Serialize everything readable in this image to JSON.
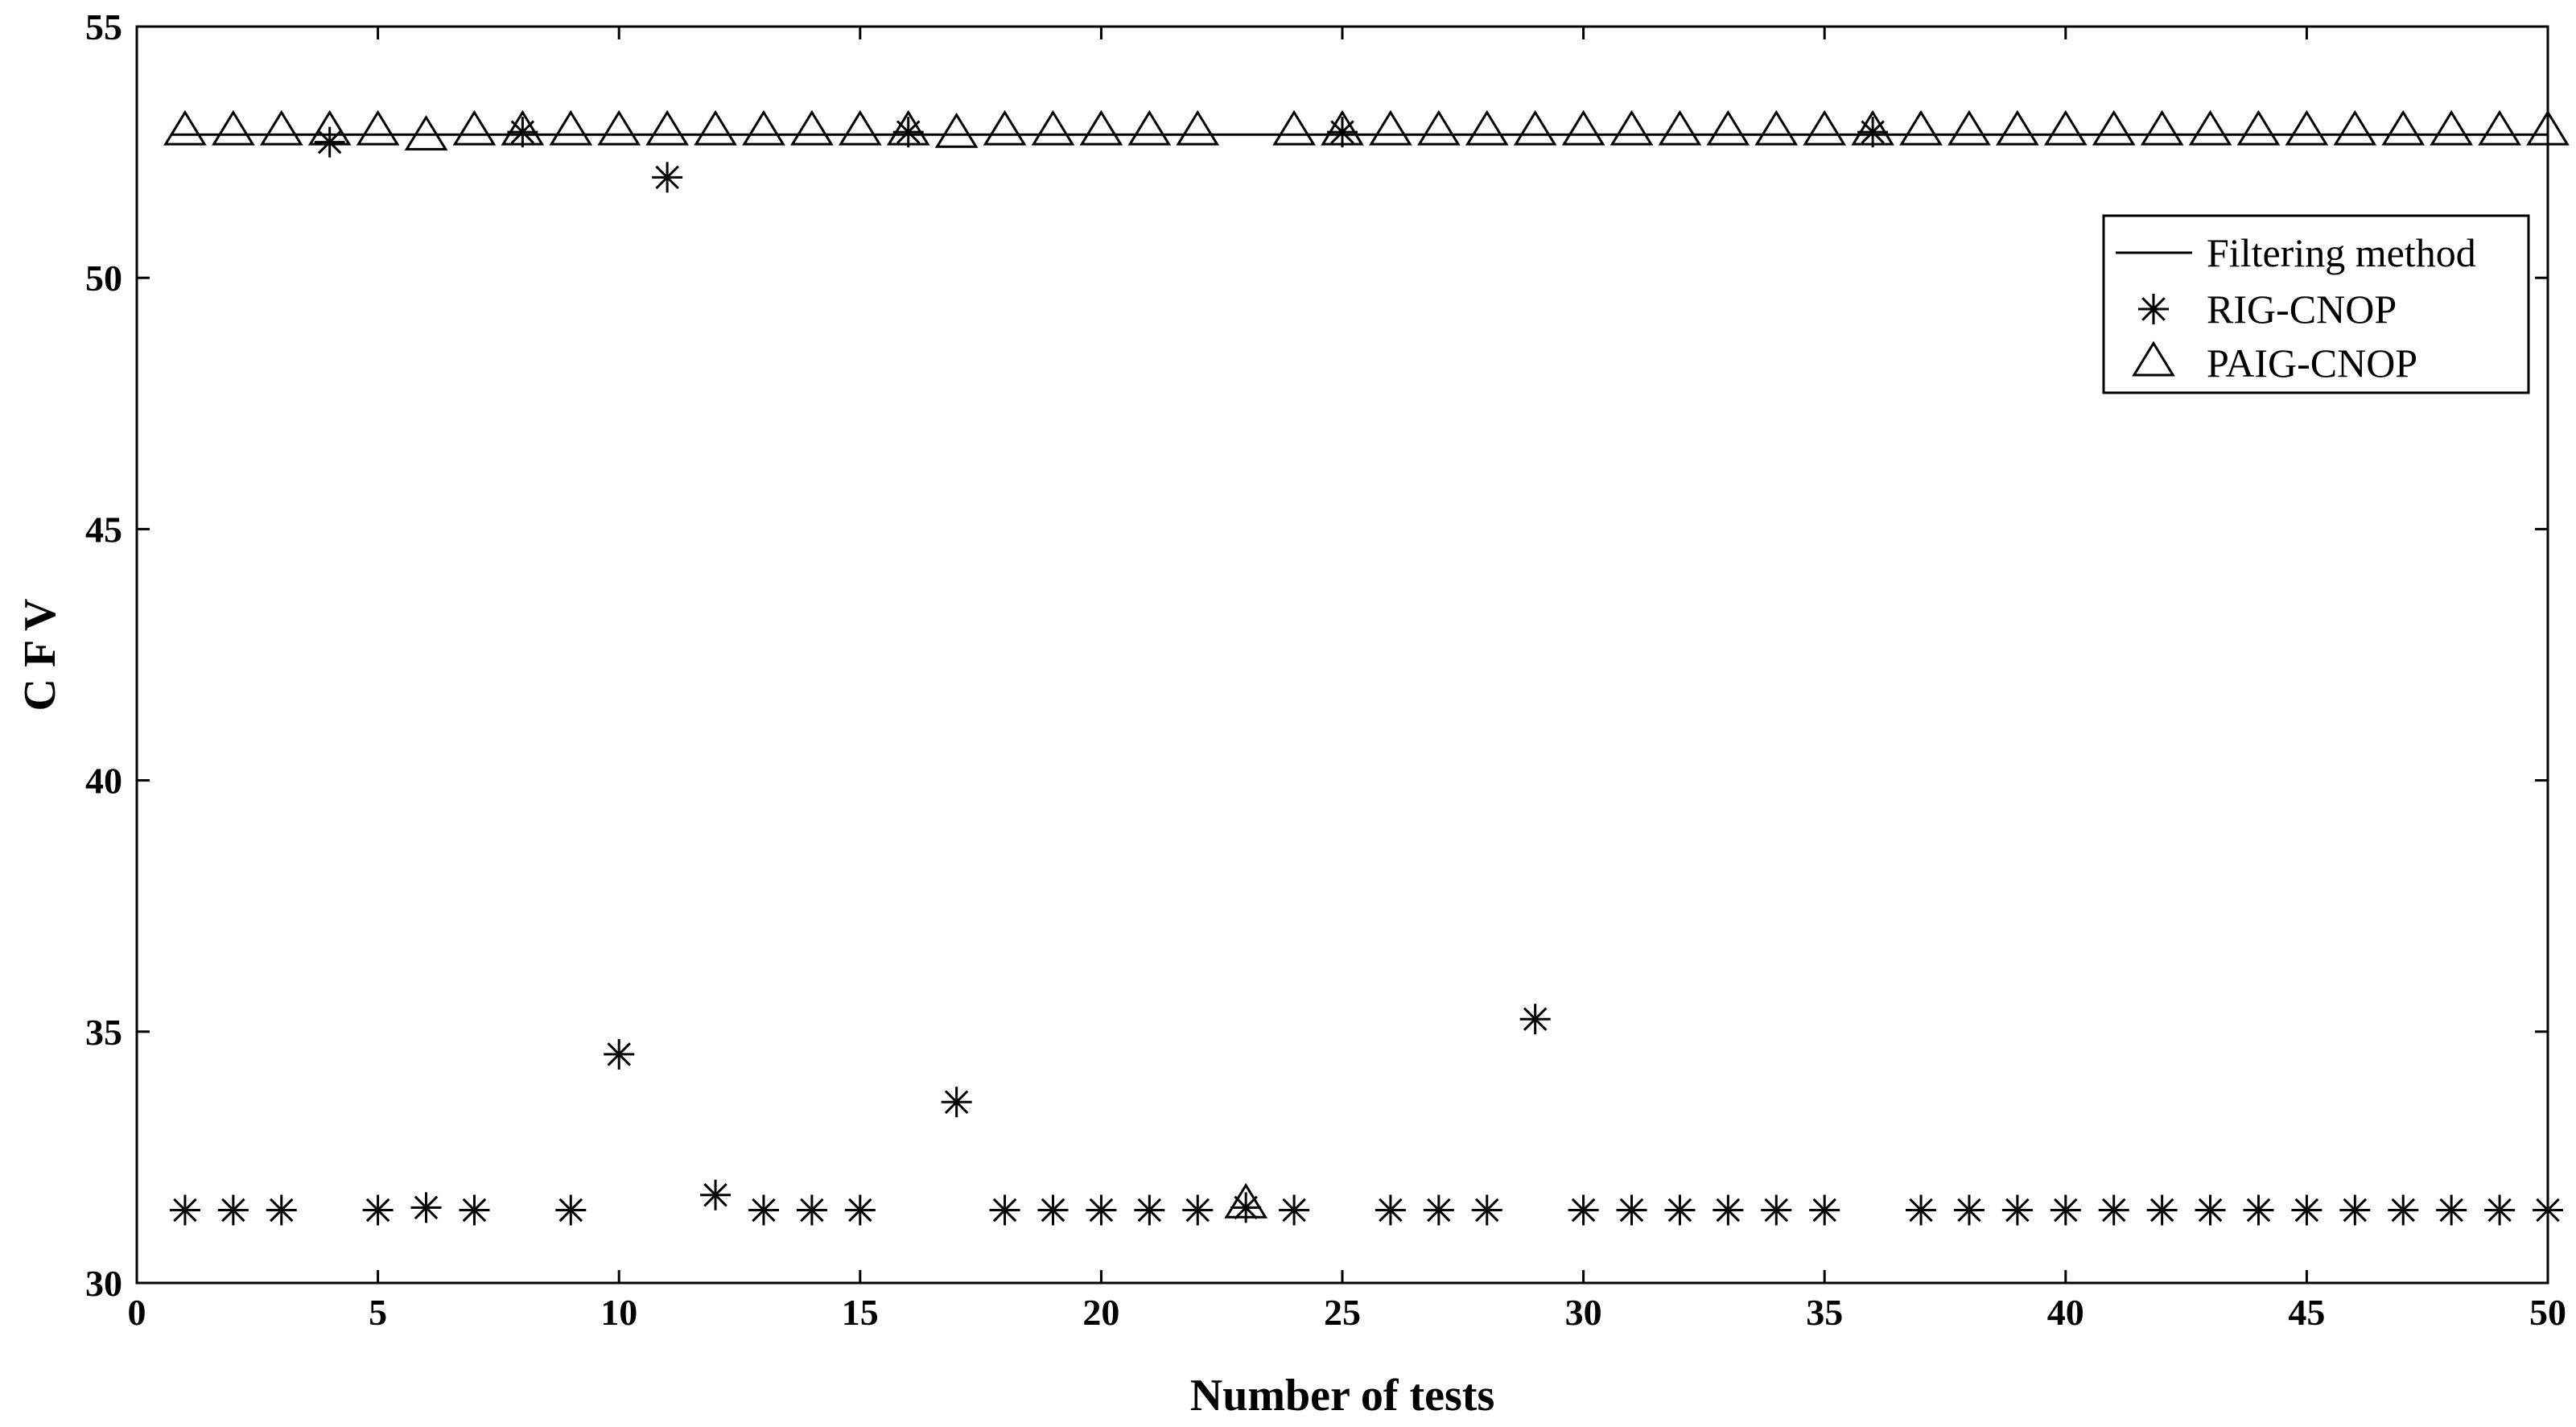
{
  "chart_data": {
    "type": "scatter",
    "xlabel": "Number of tests",
    "ylabel": "C F V",
    "xlim": [
      0,
      50
    ],
    "ylim": [
      30,
      55
    ],
    "xticks": [
      0,
      5,
      10,
      15,
      20,
      25,
      30,
      35,
      40,
      45,
      50
    ],
    "yticks": [
      30,
      35,
      40,
      45,
      50,
      55
    ],
    "grid": false,
    "legend_position": "upper-right",
    "legend": [
      "Filtering method",
      "RIG-CNOP",
      "PAIG-CNOP"
    ],
    "series": [
      {
        "name": "Filtering method",
        "marker": "line",
        "x": [
          0.7,
          50
        ],
        "y": [
          52.85,
          52.85
        ]
      },
      {
        "name": "RIG-CNOP",
        "marker": "asterisk",
        "x": [
          1,
          2,
          3,
          4,
          5,
          6,
          7,
          8,
          9,
          10,
          11,
          12,
          13,
          14,
          15,
          16,
          17,
          18,
          19,
          20,
          21,
          22,
          23,
          24,
          25,
          26,
          27,
          28,
          29,
          30,
          31,
          32,
          33,
          34,
          35,
          36,
          37,
          38,
          39,
          40,
          41,
          42,
          43,
          44,
          45,
          46,
          47,
          48,
          49,
          50
        ],
        "y": [
          31.45,
          31.45,
          31.45,
          52.7,
          31.45,
          31.5,
          31.45,
          52.9,
          31.45,
          34.55,
          52.0,
          31.75,
          31.45,
          31.45,
          31.45,
          52.9,
          33.6,
          31.45,
          31.45,
          31.45,
          31.45,
          31.45,
          31.5,
          31.45,
          52.9,
          31.45,
          31.45,
          31.45,
          35.25,
          31.45,
          31.45,
          31.45,
          31.45,
          31.45,
          31.45,
          52.9,
          31.45,
          31.45,
          31.45,
          31.45,
          31.45,
          31.45,
          31.45,
          31.45,
          31.45,
          31.45,
          31.45,
          31.45,
          31.45,
          31.45
        ]
      },
      {
        "name": "PAIG-CNOP",
        "marker": "triangle",
        "x": [
          1,
          2,
          3,
          4,
          5,
          6,
          7,
          8,
          9,
          10,
          11,
          12,
          13,
          14,
          15,
          16,
          17,
          18,
          19,
          20,
          21,
          22,
          23,
          24,
          25,
          26,
          27,
          28,
          29,
          30,
          31,
          32,
          33,
          34,
          35,
          36,
          37,
          38,
          39,
          40,
          41,
          42,
          43,
          44,
          45,
          46,
          47,
          48,
          49,
          50
        ],
        "y": [
          52.9,
          52.9,
          52.9,
          52.9,
          52.9,
          52.8,
          52.9,
          52.9,
          52.9,
          52.9,
          52.9,
          52.9,
          52.9,
          52.9,
          52.9,
          52.9,
          52.85,
          52.9,
          52.9,
          52.9,
          52.9,
          52.9,
          31.55,
          52.9,
          52.9,
          52.9,
          52.9,
          52.9,
          52.9,
          52.9,
          52.9,
          52.9,
          52.9,
          52.9,
          52.9,
          52.9,
          52.9,
          52.9,
          52.9,
          52.9,
          52.9,
          52.9,
          52.9,
          52.9,
          52.9,
          52.9,
          52.9,
          52.9,
          52.9,
          52.9
        ]
      }
    ]
  }
}
